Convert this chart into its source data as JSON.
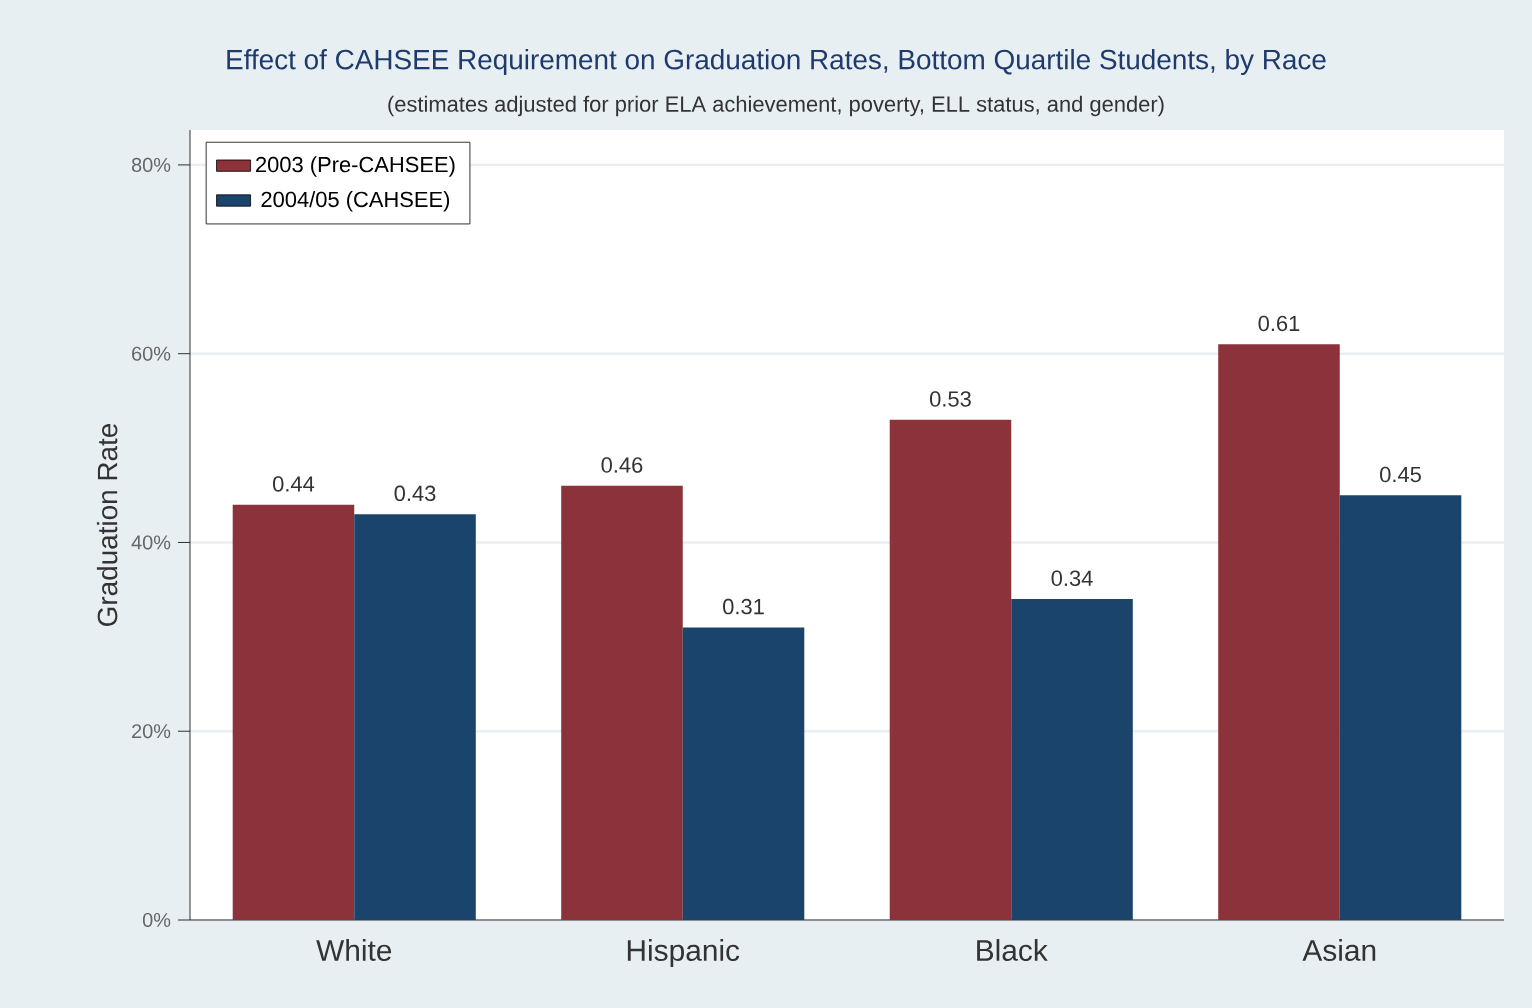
{
  "chart_data": {
    "type": "bar",
    "title": "Effect of CAHSEE Requirement on Graduation Rates, Bottom Quartile Students, by Race",
    "subtitle": "(estimates adjusted for prior ELA achievement, poverty, ELL status, and gender)",
    "ylabel": "Graduation Rate",
    "categories": [
      "White",
      "Hispanic",
      "Black",
      "Asian"
    ],
    "series": [
      {
        "name": "2003 (Pre-CAHSEE)",
        "color": "#8b323a",
        "values": [
          0.44,
          0.46,
          0.53,
          0.61
        ]
      },
      {
        "name": "2004/05 (CAHSEE)",
        "color": "#1b446c",
        "values": [
          0.43,
          0.31,
          0.34,
          0.45
        ]
      }
    ],
    "ylim": [
      0,
      0.837
    ],
    "yticks": [
      {
        "value": 0,
        "label": "0%"
      },
      {
        "value": 0.2,
        "label": "20%"
      },
      {
        "value": 0.4,
        "label": "40%"
      },
      {
        "value": 0.6,
        "label": "60%"
      },
      {
        "value": 0.8,
        "label": "80%"
      }
    ],
    "grid": "y",
    "legend": "top left",
    "data_labels": true
  }
}
